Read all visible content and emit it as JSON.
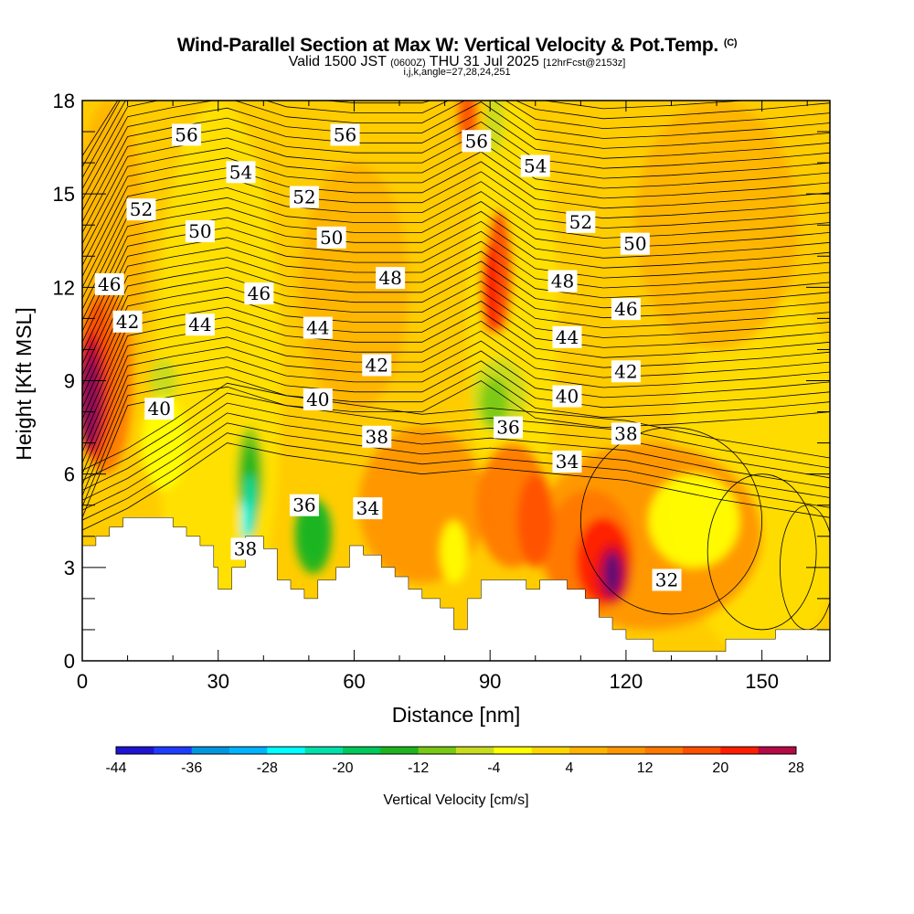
{
  "header": {
    "title": "Wind-Parallel Section at Max W: Vertical Velocity & Pot.Temp.",
    "copyright": "(C)",
    "valid_prefix": "Valid 1500 JST",
    "valid_utc": "(0600Z)",
    "valid_date": "THU 31 Jul 2025",
    "forecast": "[12hrFcst@2153z]",
    "info": "i,j,k,angle=27,28,24,251"
  },
  "colors": {
    "shading_scale": [
      "#1e14d2",
      "#1e3cff",
      "#0096e1",
      "#00b4ff",
      "#00ffff",
      "#00e1aa",
      "#00c85a",
      "#1eb41e",
      "#78c814",
      "#c8dc1e",
      "#ffff00",
      "#ffd700",
      "#ffb400",
      "#ff9600",
      "#ff7800",
      "#ff5000",
      "#ff1e00",
      "#dc0a1e",
      "#b40a46",
      "#8c0a5a",
      "#5a0a78"
    ],
    "terrain": "#ffffff",
    "contour": "#000000"
  },
  "chart_data": {
    "type": "heatmap",
    "xlabel": "Distance [nm]",
    "ylabel": "Height [Kft MSL]",
    "xlim": [
      0,
      165
    ],
    "ylim": [
      0,
      18
    ],
    "x_ticks": [
      0,
      30,
      60,
      90,
      120,
      150
    ],
    "y_ticks": [
      0,
      3,
      6,
      9,
      12,
      15,
      18
    ],
    "colorbar": {
      "title": "Vertical Velocity [cm/s]",
      "levels": [
        -44,
        -40,
        -36,
        -32,
        -28,
        -24,
        -20,
        -16,
        -12,
        -8,
        -4,
        0,
        4,
        8,
        12,
        16,
        20,
        24,
        28
      ],
      "tick_labels": [
        "-44",
        "-36",
        "-28",
        "-20",
        "-12",
        "-4",
        "4",
        "12",
        "20",
        "28"
      ]
    },
    "contour_field": "Potential Temperature",
    "contour_labels": [
      {
        "text": "56",
        "x": 23,
        "y": 16.9
      },
      {
        "text": "56",
        "x": 58,
        "y": 16.9
      },
      {
        "text": "56",
        "x": 87,
        "y": 16.7
      },
      {
        "text": "54",
        "x": 35,
        "y": 15.7
      },
      {
        "text": "54",
        "x": 100,
        "y": 15.9
      },
      {
        "text": "52",
        "x": 13,
        "y": 14.5
      },
      {
        "text": "52",
        "x": 49,
        "y": 14.9
      },
      {
        "text": "52",
        "x": 110,
        "y": 14.1
      },
      {
        "text": "50",
        "x": 26,
        "y": 13.8
      },
      {
        "text": "50",
        "x": 55,
        "y": 13.6
      },
      {
        "text": "50",
        "x": 122,
        "y": 13.4
      },
      {
        "text": "48",
        "x": 68,
        "y": 12.3
      },
      {
        "text": "48",
        "x": 106,
        "y": 12.2
      },
      {
        "text": "46",
        "x": 6,
        "y": 12.1
      },
      {
        "text": "46",
        "x": 39,
        "y": 11.8
      },
      {
        "text": "46",
        "x": 120,
        "y": 11.3
      },
      {
        "text": "44",
        "x": 26,
        "y": 10.8
      },
      {
        "text": "44",
        "x": 52,
        "y": 10.7
      },
      {
        "text": "44",
        "x": 107,
        "y": 10.4
      },
      {
        "text": "42",
        "x": 10,
        "y": 10.9
      },
      {
        "text": "42",
        "x": 65,
        "y": 9.5
      },
      {
        "text": "42",
        "x": 120,
        "y": 9.3
      },
      {
        "text": "40",
        "x": 17,
        "y": 8.1
      },
      {
        "text": "40",
        "x": 52,
        "y": 8.4
      },
      {
        "text": "40",
        "x": 107,
        "y": 8.5
      },
      {
        "text": "38",
        "x": 65,
        "y": 7.2
      },
      {
        "text": "38",
        "x": 120,
        "y": 7.3
      },
      {
        "text": "38",
        "x": 36,
        "y": 3.6
      },
      {
        "text": "36",
        "x": 49,
        "y": 5.0
      },
      {
        "text": "36",
        "x": 94,
        "y": 7.5
      },
      {
        "text": "34",
        "x": 63,
        "y": 4.9
      },
      {
        "text": "34",
        "x": 107,
        "y": 6.4
      },
      {
        "text": "32",
        "x": 129,
        "y": 2.6
      }
    ],
    "terrain_profile": {
      "x": [
        0,
        3,
        3,
        6,
        6,
        9,
        9,
        10,
        10,
        13,
        13,
        20,
        20,
        23,
        23,
        26,
        26,
        29,
        29,
        30,
        30,
        33,
        33,
        36,
        36,
        40,
        40,
        43,
        43,
        46,
        46,
        49,
        49,
        52,
        52,
        56,
        56,
        59,
        59,
        62,
        62,
        66,
        66,
        69,
        69,
        72,
        72,
        75,
        75,
        79,
        79,
        82,
        82,
        85,
        85,
        88,
        88,
        92,
        92,
        98,
        98,
        101,
        101,
        104,
        104,
        107,
        107,
        111,
        111,
        114,
        114,
        117,
        117,
        120,
        120,
        123,
        123,
        126,
        126,
        130,
        130,
        142,
        142,
        150,
        150,
        153,
        153,
        165,
        165
      ],
      "y": [
        3.7,
        3.7,
        4.0,
        4.0,
        4.3,
        4.3,
        4.6,
        4.6,
        4.6,
        4.6,
        4.6,
        4.6,
        4.3,
        4.3,
        4.0,
        4.0,
        3.7,
        3.7,
        3.0,
        3.0,
        2.3,
        2.3,
        3.0,
        3.0,
        4.0,
        4.0,
        3.6,
        3.6,
        2.6,
        2.6,
        2.3,
        2.3,
        2.0,
        2.0,
        2.6,
        2.6,
        3.0,
        3.0,
        3.7,
        3.7,
        3.4,
        3.4,
        3.0,
        3.0,
        2.7,
        2.7,
        2.3,
        2.3,
        2.0,
        2.0,
        1.7,
        1.7,
        1.0,
        1.0,
        2.0,
        2.0,
        2.6,
        2.6,
        2.6,
        2.6,
        2.3,
        2.3,
        2.6,
        2.6,
        2.6,
        2.6,
        2.3,
        2.3,
        2.0,
        2.0,
        1.4,
        1.4,
        1.0,
        1.0,
        0.7,
        0.7,
        0.7,
        0.7,
        0.3,
        0.3,
        0.3,
        0.3,
        0.7,
        0.7,
        0.7,
        0.7,
        1.0,
        1.0,
        1.0
      ]
    }
  }
}
